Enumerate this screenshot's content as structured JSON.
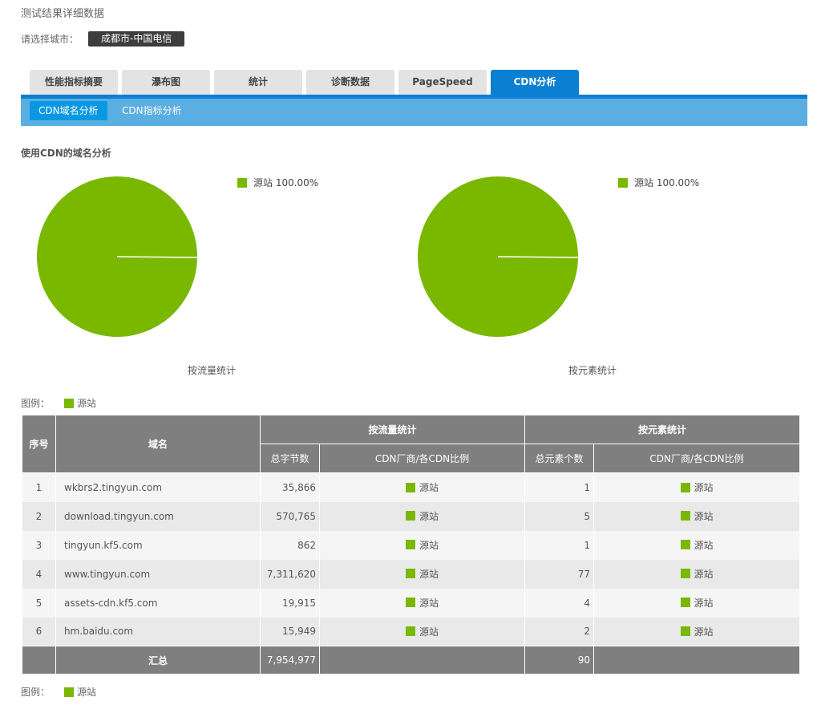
{
  "page_title": "测试结果详细数据",
  "city": {
    "label": "请选择城市：",
    "selected": "成都市-中国电信"
  },
  "tabs": [
    {
      "label": "性能指标摘要",
      "active": false
    },
    {
      "label": "瀑布图",
      "active": false
    },
    {
      "label": "统计",
      "active": false
    },
    {
      "label": "诊断数据",
      "active": false
    },
    {
      "label": "PageSpeed",
      "active": false
    },
    {
      "label": "CDN分析",
      "active": true
    }
  ],
  "subtabs": [
    {
      "label": "CDN域名分析",
      "active": true
    },
    {
      "label": "CDN指标分析",
      "active": false
    }
  ],
  "section_title": "使用CDN的域名分析",
  "colors": {
    "origin": "#7ab800",
    "accent": "#0b7fd1",
    "header_gray": "#7f7f7f"
  },
  "chart_data": [
    {
      "type": "pie",
      "title": "按流量统计",
      "slices": [
        {
          "name": "源站",
          "value": 100.0,
          "label": "源站 100.00%"
        }
      ]
    },
    {
      "type": "pie",
      "title": "按元素统计",
      "slices": [
        {
          "name": "源站",
          "value": 100.0,
          "label": "源站 100.00%"
        }
      ]
    }
  ],
  "legend": {
    "label": "图例：",
    "item": "源站"
  },
  "table": {
    "headers": {
      "index": "序号",
      "domain": "域名",
      "by_traffic": "按流量统计",
      "by_element": "按元素统计",
      "total_bytes": "总字节数",
      "cdn_ratio": "CDN厂商/各CDN比例",
      "total_elements": "总元素个数",
      "cdn_ratio2": "CDN厂商/各CDN比例"
    },
    "rows": [
      {
        "index": "1",
        "domain": "wkbrs2.tingyun.com",
        "bytes": "35,866",
        "vendor1": "源站",
        "elements": "1",
        "vendor2": "源站"
      },
      {
        "index": "2",
        "domain": "download.tingyun.com",
        "bytes": "570,765",
        "vendor1": "源站",
        "elements": "5",
        "vendor2": "源站"
      },
      {
        "index": "3",
        "domain": "tingyun.kf5.com",
        "bytes": "862",
        "vendor1": "源站",
        "elements": "1",
        "vendor2": "源站"
      },
      {
        "index": "4",
        "domain": "www.tingyun.com",
        "bytes": "7,311,620",
        "vendor1": "源站",
        "elements": "77",
        "vendor2": "源站"
      },
      {
        "index": "5",
        "domain": "assets-cdn.kf5.com",
        "bytes": "19,915",
        "vendor1": "源站",
        "elements": "4",
        "vendor2": "源站"
      },
      {
        "index": "6",
        "domain": "hm.baidu.com",
        "bytes": "15,949",
        "vendor1": "源站",
        "elements": "2",
        "vendor2": "源站"
      }
    ],
    "total": {
      "label": "汇总",
      "bytes": "7,954,977",
      "elements": "90"
    }
  }
}
